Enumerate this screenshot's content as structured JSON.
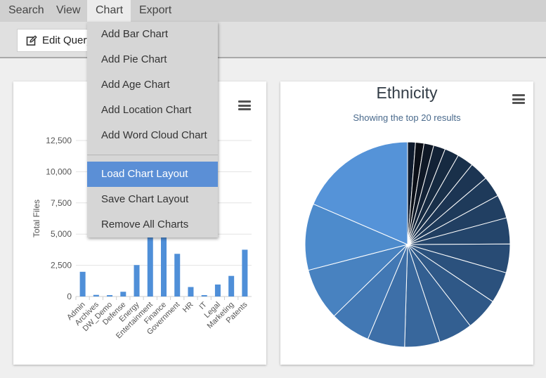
{
  "menubar": {
    "items": [
      {
        "label": "Search"
      },
      {
        "label": "View"
      },
      {
        "label": "Chart"
      },
      {
        "label": "Export"
      }
    ]
  },
  "toolbar": {
    "edit_query_label": "Edit Query"
  },
  "chart_menu": {
    "items": [
      {
        "label": "Add Bar Chart"
      },
      {
        "label": "Add Pie Chart"
      },
      {
        "label": "Add Age Chart"
      },
      {
        "label": "Add Location Chart"
      },
      {
        "label": "Add Word Cloud Chart"
      },
      {
        "label": "Load Chart Layout"
      },
      {
        "label": "Save Chart Layout"
      },
      {
        "label": "Remove All Charts"
      }
    ],
    "highlighted": "Load Chart Layout"
  },
  "chart_data": [
    {
      "type": "bar",
      "title": "",
      "xlabel": "",
      "ylabel": "Total Files",
      "ylim": [
        0,
        12500
      ],
      "yticks": [
        "0",
        "2,500",
        "5,000",
        "7,500",
        "10,000",
        "12,500"
      ],
      "grid": true,
      "color": "#4f8fd8",
      "categories": [
        "Admin",
        "Archives",
        "DW_Demo",
        "Defense",
        "Energy",
        "Entertainment",
        "Finance",
        "Government",
        "HR",
        "IT",
        "Legal",
        "Marketing",
        "Patents"
      ],
      "values": [
        1980,
        130,
        110,
        380,
        2520,
        5200,
        5100,
        3420,
        760,
        110,
        960,
        1650,
        3750
      ]
    },
    {
      "type": "pie",
      "title": "Ethnicity",
      "subtitle": "Showing the top 20 results",
      "slices": [
        {
          "value": 1.2,
          "color": "#0f1b2d"
        },
        {
          "value": 1.3,
          "color": "#0b0f17"
        },
        {
          "value": 1.5,
          "color": "#0f1826"
        },
        {
          "value": 1.8,
          "color": "#132236"
        },
        {
          "value": 2.2,
          "color": "#162a41"
        },
        {
          "value": 2.5,
          "color": "#19304a"
        },
        {
          "value": 2.9,
          "color": "#1c3553"
        },
        {
          "value": 3.2,
          "color": "#1e3a5a"
        },
        {
          "value": 3.6,
          "color": "#213f62"
        },
        {
          "value": 4.0,
          "color": "#24456b"
        },
        {
          "value": 4.4,
          "color": "#284b74"
        },
        {
          "value": 4.8,
          "color": "#2b517d"
        },
        {
          "value": 5.0,
          "color": "#2f5887"
        },
        {
          "value": 5.2,
          "color": "#335f91"
        },
        {
          "value": 5.4,
          "color": "#38679c"
        },
        {
          "value": 5.7,
          "color": "#3d6fa8"
        },
        {
          "value": 6.2,
          "color": "#4278b4"
        },
        {
          "value": 8.0,
          "color": "#4882c0"
        },
        {
          "value": 10.2,
          "color": "#4d8bcc"
        },
        {
          "value": 18.0,
          "color": "#5593d8"
        }
      ]
    }
  ],
  "icons": {
    "edit": "edit-icon",
    "card_menu": "hamburger-menu-icon"
  }
}
